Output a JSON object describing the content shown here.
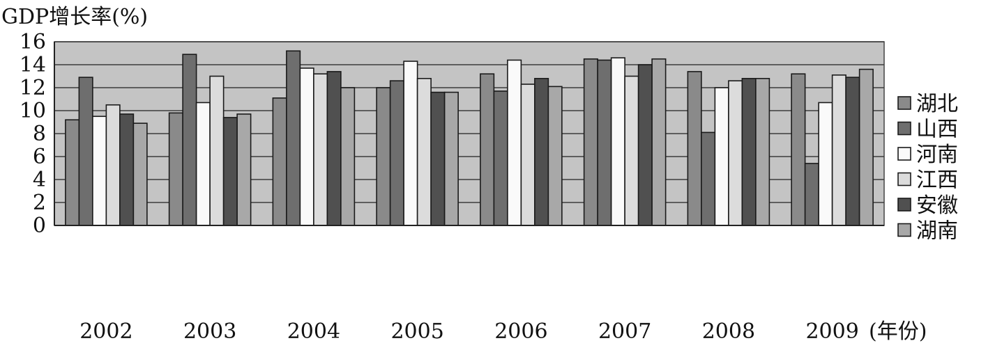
{
  "chart_data": {
    "type": "bar",
    "ylabel": "GDP增长率(%)",
    "xlabel": "(年份)",
    "ylim": [
      0,
      16
    ],
    "yticks": [
      0,
      2,
      4,
      6,
      8,
      10,
      12,
      14,
      16
    ],
    "grid": true,
    "legend_position": "right",
    "categories": [
      "2002",
      "2003",
      "2004",
      "2005",
      "2006",
      "2007",
      "2008",
      "2009"
    ],
    "series": [
      {
        "name": "湖北",
        "color": "#8a8a8a",
        "values": [
          9.2,
          9.8,
          11.1,
          12.0,
          13.2,
          14.5,
          13.4,
          13.2
        ]
      },
      {
        "name": "山西",
        "color": "#6e6e6e",
        "values": [
          12.9,
          14.9,
          15.2,
          12.6,
          11.7,
          14.4,
          8.1,
          5.4
        ]
      },
      {
        "name": "河南",
        "color": "#fafafa",
        "values": [
          9.5,
          10.7,
          13.7,
          14.3,
          14.4,
          14.6,
          12.0,
          10.7
        ]
      },
      {
        "name": "江西",
        "color": "#dcdcdc",
        "values": [
          10.5,
          13.0,
          13.2,
          12.8,
          12.3,
          13.0,
          12.6,
          13.1
        ]
      },
      {
        "name": "安徽",
        "color": "#505050",
        "values": [
          9.7,
          9.4,
          13.4,
          11.6,
          12.8,
          14.0,
          12.8,
          12.9
        ]
      },
      {
        "name": "湖南",
        "color": "#a8a8a8",
        "values": [
          8.9,
          9.7,
          12.0,
          11.6,
          12.1,
          14.5,
          12.8,
          13.6
        ]
      }
    ]
  }
}
